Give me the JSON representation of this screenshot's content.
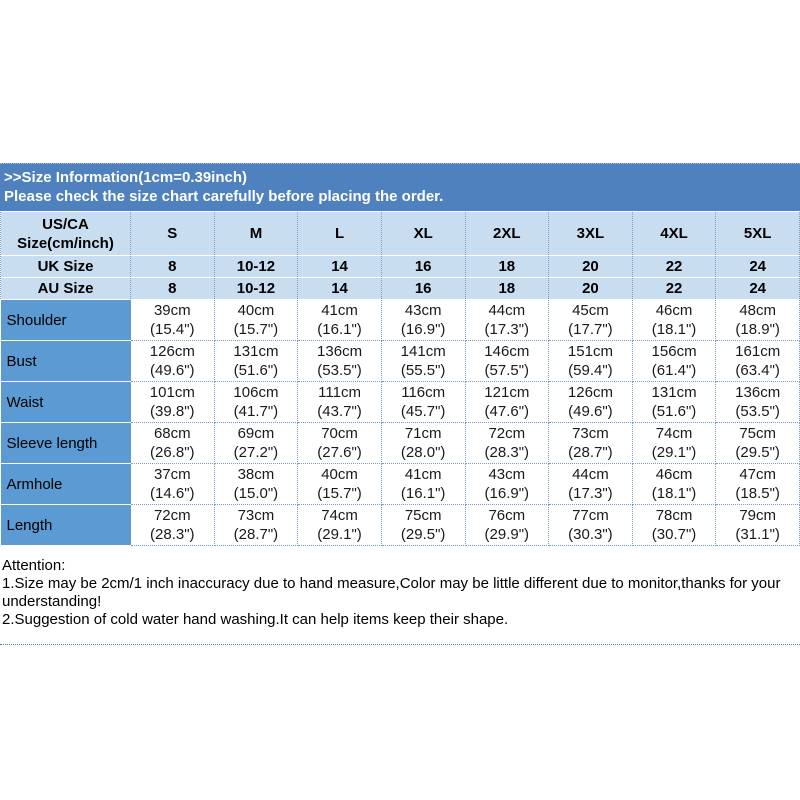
{
  "title_bar": {
    "line1": ">>Size Information(1cm=0.39inch)",
    "line2": "Please check the size chart carefully before placing the order."
  },
  "size_chart": {
    "corner": {
      "line1": "US/CA",
      "line2": "Size(cm/inch)"
    },
    "columns": [
      "S",
      "M",
      "L",
      "XL",
      "2XL",
      "3XL",
      "4XL",
      "5XL"
    ],
    "uk_row": {
      "label": "UK Size",
      "values": [
        "8",
        "10-12",
        "14",
        "16",
        "18",
        "20",
        "22",
        "24"
      ]
    },
    "au_row": {
      "label": "AU Size",
      "values": [
        "8",
        "10-12",
        "14",
        "16",
        "18",
        "20",
        "22",
        "24"
      ]
    },
    "measurements": [
      {
        "label": "Shoulder",
        "cells": [
          {
            "cm": "39cm",
            "in": "(15.4\")"
          },
          {
            "cm": "40cm",
            "in": "(15.7\")"
          },
          {
            "cm": "41cm",
            "in": "(16.1\")"
          },
          {
            "cm": "43cm",
            "in": "(16.9\")"
          },
          {
            "cm": "44cm",
            "in": "(17.3\")"
          },
          {
            "cm": "45cm",
            "in": "(17.7\")"
          },
          {
            "cm": "46cm",
            "in": "(18.1\")"
          },
          {
            "cm": "48cm",
            "in": "(18.9\")"
          }
        ]
      },
      {
        "label": "Bust",
        "cells": [
          {
            "cm": "126cm",
            "in": "(49.6\")"
          },
          {
            "cm": "131cm",
            "in": "(51.6\")"
          },
          {
            "cm": "136cm",
            "in": "(53.5\")"
          },
          {
            "cm": "141cm",
            "in": "(55.5\")"
          },
          {
            "cm": "146cm",
            "in": "(57.5\")"
          },
          {
            "cm": "151cm",
            "in": "(59.4\")"
          },
          {
            "cm": "156cm",
            "in": "(61.4\")"
          },
          {
            "cm": "161cm",
            "in": "(63.4\")"
          }
        ]
      },
      {
        "label": "Waist",
        "cells": [
          {
            "cm": "101cm",
            "in": "(39.8\")"
          },
          {
            "cm": "106cm",
            "in": "(41.7\")"
          },
          {
            "cm": "111cm",
            "in": "(43.7\")"
          },
          {
            "cm": "116cm",
            "in": "(45.7\")"
          },
          {
            "cm": "121cm",
            "in": "(47.6\")"
          },
          {
            "cm": "126cm",
            "in": "(49.6\")"
          },
          {
            "cm": "131cm",
            "in": "(51.6\")"
          },
          {
            "cm": "136cm",
            "in": "(53.5\")"
          }
        ]
      },
      {
        "label": "Sleeve length",
        "cells": [
          {
            "cm": "68cm",
            "in": "(26.8\")"
          },
          {
            "cm": "69cm",
            "in": "(27.2\")"
          },
          {
            "cm": "70cm",
            "in": "(27.6\")"
          },
          {
            "cm": "71cm",
            "in": "(28.0\")"
          },
          {
            "cm": "72cm",
            "in": "(28.3\")"
          },
          {
            "cm": "73cm",
            "in": "(28.7\")"
          },
          {
            "cm": "74cm",
            "in": "(29.1\")"
          },
          {
            "cm": "75cm",
            "in": "(29.5\")"
          }
        ]
      },
      {
        "label": "Armhole",
        "cells": [
          {
            "cm": "37cm",
            "in": "(14.6\")"
          },
          {
            "cm": "38cm",
            "in": "(15.0\")"
          },
          {
            "cm": "40cm",
            "in": "(15.7\")"
          },
          {
            "cm": "41cm",
            "in": "(16.1\")"
          },
          {
            "cm": "43cm",
            "in": "(16.9\")"
          },
          {
            "cm": "44cm",
            "in": "(17.3\")"
          },
          {
            "cm": "46cm",
            "in": "(18.1\")"
          },
          {
            "cm": "47cm",
            "in": "(18.5\")"
          }
        ]
      },
      {
        "label": "Length",
        "cells": [
          {
            "cm": "72cm",
            "in": "(28.3\")"
          },
          {
            "cm": "73cm",
            "in": "(28.7\")"
          },
          {
            "cm": "74cm",
            "in": "(29.1\")"
          },
          {
            "cm": "75cm",
            "in": "(29.5\")"
          },
          {
            "cm": "76cm",
            "in": "(29.9\")"
          },
          {
            "cm": "77cm",
            "in": "(30.3\")"
          },
          {
            "cm": "78cm",
            "in": "(30.7\")"
          },
          {
            "cm": "79cm",
            "in": "(31.1\")"
          }
        ]
      }
    ]
  },
  "attention": {
    "heading": "Attention:",
    "note1": "1.Size may be 2cm/1 inch inaccuracy due to hand measure,Color may be little different due to monitor,thanks for your understanding!",
    "note2": "2.Suggestion of cold water hand washing.It can help items keep their shape."
  },
  "colors": {
    "header_bar_blue": "#4e81bd",
    "header_row_light_blue": "#c9ddf1",
    "row_label_blue": "#5b9ad2",
    "grid_dotted_blue": "#7c9cc3",
    "separator_teal": "#4b7f8e"
  }
}
